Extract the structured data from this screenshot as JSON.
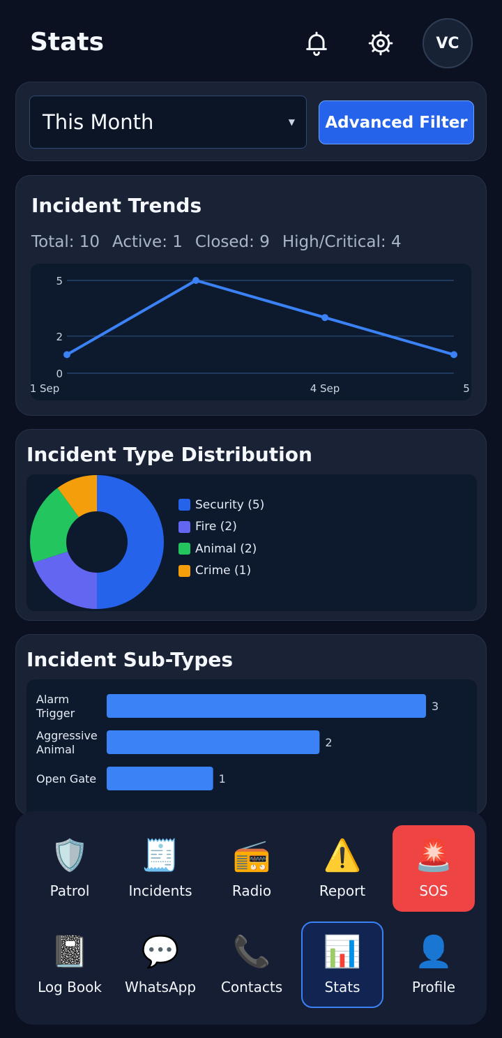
{
  "header": {
    "title": "Stats",
    "avatar_initials": "VC",
    "icons": [
      "bell-icon",
      "gear-icon"
    ]
  },
  "filter": {
    "period_value": "This Month",
    "advanced_filter_label": "Advanced Filter"
  },
  "trends": {
    "title": "Incident Trends",
    "summary": {
      "total": "Total: 10",
      "active": "Active: 1",
      "closed": "Closed: 9",
      "high_critical": "High/Critical: 4"
    }
  },
  "distribution": {
    "title": "Incident Type Distribution"
  },
  "subtypes": {
    "title": "Incident Sub-Types"
  },
  "chart_data": [
    {
      "type": "line",
      "title": "Incident Trends",
      "x_tick_labels": [
        "1 Sep",
        "4 Sep",
        "5"
      ],
      "y_ticks": [
        0,
        2,
        5
      ],
      "ylim": [
        0,
        5
      ],
      "grid": true,
      "series": [
        {
          "x": [
            "1 Sep",
            "",
            "4 Sep",
            "5"
          ],
          "values": [
            1,
            5,
            3,
            1
          ]
        }
      ],
      "color": "#3b82f6"
    },
    {
      "type": "pie",
      "title": "Incident Type Distribution",
      "donut": true,
      "legend_position": "right",
      "slices": [
        {
          "label": "Security (5)",
          "value": 5,
          "color": "#2563eb"
        },
        {
          "label": "Fire (2)",
          "value": 2,
          "color": "#6366f1"
        },
        {
          "label": "Animal (2)",
          "value": 2,
          "color": "#22c55e"
        },
        {
          "label": "Crime (1)",
          "value": 1,
          "color": "#f59e0b"
        }
      ]
    },
    {
      "type": "bar",
      "orientation": "horizontal",
      "title": "Incident Sub-Types",
      "categories": [
        [
          "Alarm",
          "Trigger"
        ],
        [
          "Aggressive",
          "Animal"
        ],
        [
          "Open Gate"
        ]
      ],
      "values": [
        3,
        2,
        1
      ],
      "value_labels": [
        "3",
        "2",
        "1"
      ],
      "color": "#3b82f6"
    }
  ],
  "nav": {
    "items": [
      {
        "label": "Patrol",
        "icon": "🛡️",
        "icon_name": "shield-icon"
      },
      {
        "label": "Incidents",
        "icon": "🧾",
        "icon_name": "receipt-icon"
      },
      {
        "label": "Radio",
        "icon": "📻",
        "icon_name": "radio-icon"
      },
      {
        "label": "Report",
        "icon": "⚠️",
        "icon_name": "warning-icon"
      },
      {
        "label": "SOS",
        "icon": "🚨",
        "icon_name": "siren-icon"
      },
      {
        "label": "Log Book",
        "icon": "📓",
        "icon_name": "notebook-icon"
      },
      {
        "label": "WhatsApp",
        "icon": "💬",
        "icon_name": "chat-bubble-icon"
      },
      {
        "label": "Contacts",
        "icon": "📞",
        "icon_name": "phone-icon"
      },
      {
        "label": "Stats",
        "icon": "📊",
        "icon_name": "bar-chart-icon"
      },
      {
        "label": "Profile",
        "icon": "👤",
        "icon_name": "person-icon"
      }
    ],
    "active": "Stats",
    "emergency": "SOS"
  },
  "colors": {
    "background": "#0b1120",
    "card": "#1a2335",
    "accent": "#2563eb",
    "sos": "#ef4444"
  }
}
